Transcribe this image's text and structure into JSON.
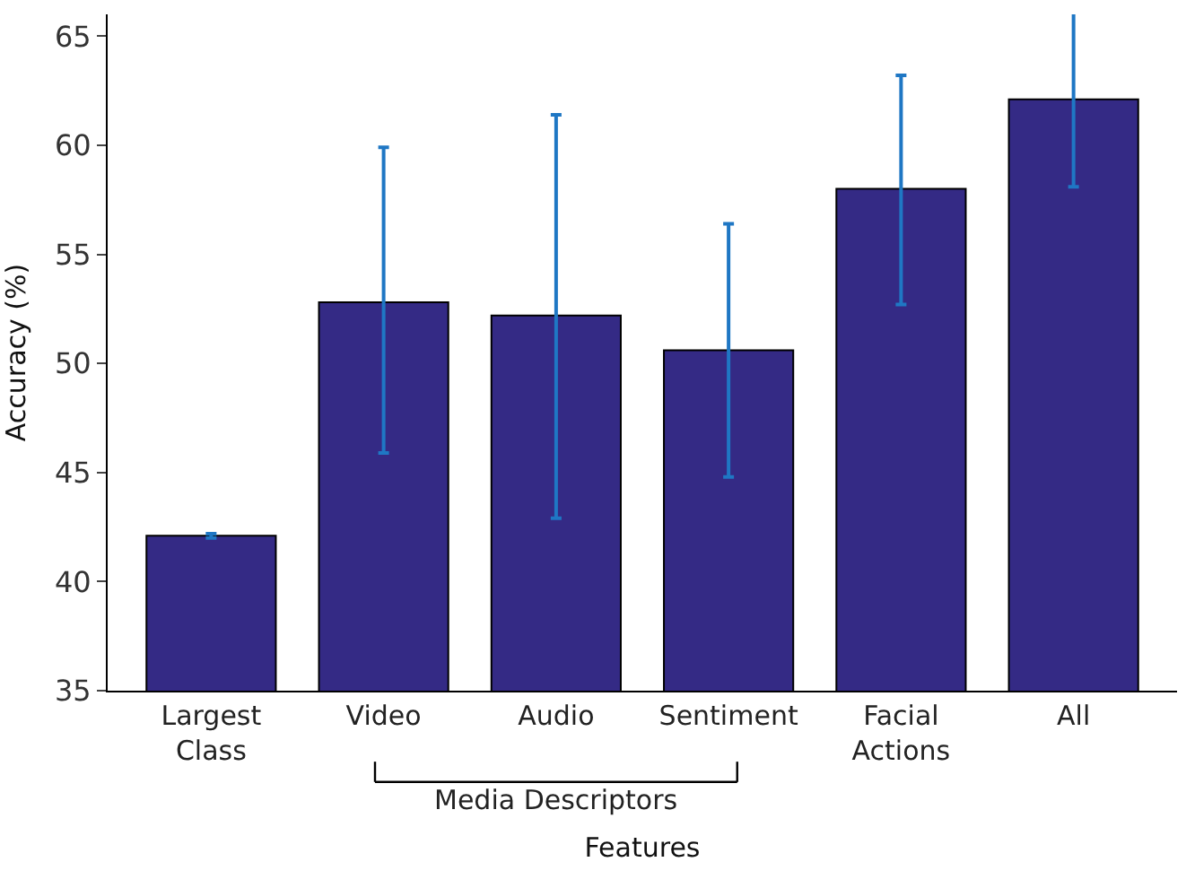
{
  "chart_data": {
    "type": "bar",
    "xlabel": "Features",
    "ylabel": "Accuracy (%)",
    "categories": [
      "Largest\nClass",
      "Video",
      "Audio",
      "Sentiment",
      "Facial\nActions",
      "All"
    ],
    "series": [
      {
        "color": "#342a85",
        "values": [
          42.1,
          52.8,
          52.2,
          50.6,
          58.0,
          62.1
        ],
        "errors": [
          [
            42.0,
            42.2
          ],
          [
            45.9,
            59.9
          ],
          [
            42.9,
            61.4
          ],
          [
            44.8,
            56.4
          ],
          [
            52.7,
            63.2
          ],
          [
            58.1,
            66.2
          ]
        ]
      }
    ],
    "annotations": [
      "Media Descriptors"
    ],
    "ylim": [
      35,
      66
    ],
    "yticks": [
      35,
      40,
      45,
      50,
      55,
      60,
      65
    ]
  }
}
